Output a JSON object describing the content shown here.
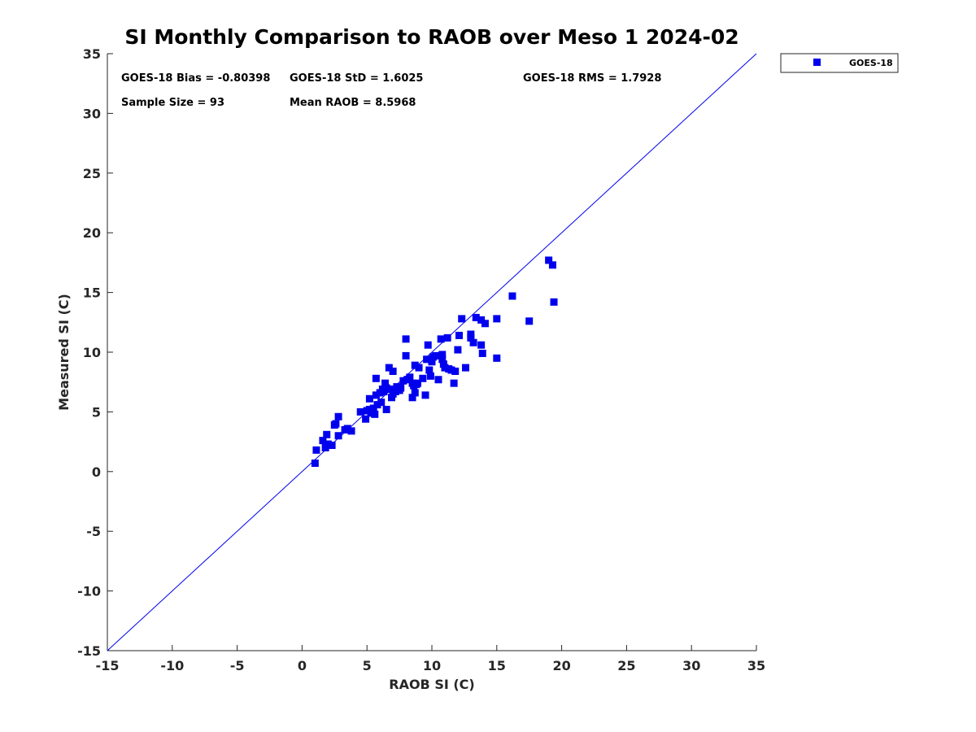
{
  "chart_data": {
    "type": "scatter",
    "title": "SI Monthly Comparison to RAOB over Meso 1 2024-02",
    "xlabel": "RAOB SI (C)",
    "ylabel": "Measured SI (C)",
    "xlim": [
      -15,
      35
    ],
    "ylim": [
      -15,
      35
    ],
    "xticks": [
      "-15",
      "-10",
      "-5",
      "0",
      "5",
      "10",
      "15",
      "20",
      "25",
      "30",
      "35"
    ],
    "yticks": [
      "-15",
      "-10",
      "-5",
      "0",
      "5",
      "10",
      "15",
      "20",
      "25",
      "30",
      "35"
    ],
    "grid": false,
    "legend_position": "outside-top-right",
    "reference_line": {
      "name": "1:1 line",
      "color": "#0000ee"
    },
    "stats": {
      "bias": "GOES-18 Bias = -0.80398",
      "std": "GOES-18 StD = 1.6025",
      "rms": "GOES-18 RMS = 1.7928",
      "sample_size": "Sample Size = 93",
      "mean_raob": "Mean RAOB = 8.5968"
    },
    "series": [
      {
        "name": "GOES-18",
        "color": "#0000ee",
        "marker": "square",
        "x": [
          1.0,
          1.1,
          1.6,
          1.9,
          1.8,
          2.0,
          2.3,
          2.5,
          2.6,
          2.8,
          2.8,
          3.3,
          3.8,
          4.9,
          5.0,
          5.2,
          5.2,
          5.3,
          5.5,
          5.6,
          5.7,
          5.7,
          5.8,
          6.0,
          6.1,
          6.3,
          6.4,
          6.5,
          6.5,
          6.7,
          6.8,
          6.9,
          7.0,
          7.0,
          7.2,
          7.3,
          7.5,
          8.0,
          8.0,
          8.1,
          8.3,
          8.5,
          8.5,
          8.6,
          8.7,
          8.7,
          8.8,
          8.9,
          9.0,
          9.3,
          9.5,
          9.7,
          9.8,
          9.9,
          10.0,
          10.1,
          10.3,
          10.5,
          10.7,
          10.8,
          10.8,
          10.9,
          11.0,
          11.2,
          11.3,
          11.7,
          11.8,
          12.0,
          12.1,
          12.3,
          12.6,
          13.0,
          13.0,
          13.2,
          13.4,
          13.8,
          13.8,
          13.9,
          14.1,
          15.0,
          15.0,
          16.2,
          17.5,
          19.0,
          19.3,
          19.4,
          3.5,
          4.5,
          7.8,
          6.2,
          9.6,
          11.5,
          7.6
        ],
        "y": [
          0.7,
          1.8,
          2.6,
          3.1,
          2.0,
          2.3,
          2.2,
          3.9,
          4.0,
          3.0,
          4.6,
          3.5,
          3.4,
          4.4,
          5.1,
          5.2,
          6.1,
          4.9,
          5.3,
          4.8,
          6.4,
          7.8,
          5.6,
          6.6,
          5.8,
          6.7,
          7.4,
          5.2,
          7.0,
          8.7,
          6.9,
          6.2,
          6.5,
          8.4,
          6.7,
          7.1,
          6.8,
          11.1,
          9.7,
          7.7,
          7.9,
          7.4,
          6.2,
          7.2,
          8.9,
          6.6,
          7.3,
          7.4,
          8.7,
          7.8,
          6.4,
          10.6,
          8.5,
          8.0,
          9.2,
          9.6,
          9.7,
          7.7,
          11.1,
          9.4,
          9.8,
          9.0,
          8.7,
          11.2,
          8.6,
          7.4,
          8.4,
          10.2,
          11.4,
          12.8,
          8.7,
          11.5,
          11.2,
          10.8,
          12.9,
          12.7,
          10.6,
          9.9,
          12.4,
          12.8,
          9.5,
          14.7,
          12.6,
          17.7,
          17.3,
          14.2,
          3.6,
          5.0,
          7.6,
          6.9,
          9.4,
          8.5,
          7.0
        ]
      }
    ]
  }
}
